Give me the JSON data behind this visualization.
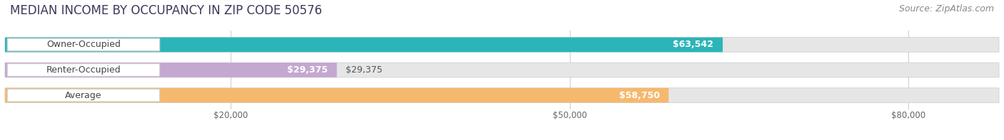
{
  "title": "MEDIAN INCOME BY OCCUPANCY IN ZIP CODE 50576",
  "source": "Source: ZipAtlas.com",
  "categories": [
    "Owner-Occupied",
    "Renter-Occupied",
    "Average"
  ],
  "values": [
    63542,
    29375,
    58750
  ],
  "bar_colors": [
    "#2bb5b8",
    "#c4a8d0",
    "#f5b96e"
  ],
  "bar_labels": [
    "$63,542",
    "$29,375",
    "$58,750"
  ],
  "x_ticks": [
    20000,
    50000,
    80000
  ],
  "x_tick_labels": [
    "$20,000",
    "$50,000",
    "$80,000"
  ],
  "xlim": [
    0,
    88000
  ],
  "bg_color": "#ffffff",
  "bar_bg_color": "#e8e8e8",
  "title_fontsize": 12,
  "source_fontsize": 9,
  "label_fontsize": 9,
  "cat_fontsize": 9,
  "bar_height": 0.58
}
